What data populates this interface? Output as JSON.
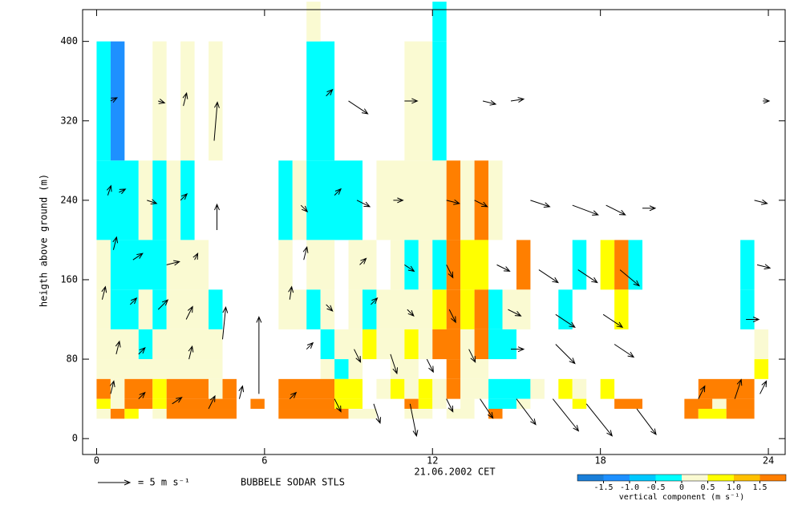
{
  "chart_data": {
    "type": "sodar",
    "caption": "BUBBELE SODAR STLS",
    "x_label": "21.06.2002 CET",
    "y_label": "heigth above ground (m)",
    "xlim": [
      -0.5,
      24.6
    ],
    "xticks": [
      0,
      6,
      12,
      18,
      24
    ],
    "ylim": [
      -16,
      432
    ],
    "yticks": [
      0,
      80,
      160,
      240,
      320,
      400
    ],
    "colorbar": {
      "label": "vertical component (m s⁻¹)",
      "bounds": [
        -2,
        -1.5,
        -1,
        -0.5,
        0,
        0.5,
        1,
        1.5,
        2
      ],
      "colors": [
        "#1a7fd9",
        "#1e90ff",
        "#00c8ff",
        "#00ffff",
        "#fafad2",
        "#ffff00",
        "#ffc000",
        "#ff7f00"
      ],
      "ticks": [
        {
          "value": -1.5,
          "label": "-1.5"
        },
        {
          "value": -1,
          "label": "-1.0"
        },
        {
          "value": -0.5,
          "label": "-0.5"
        },
        0,
        0.5,
        {
          "value": 1,
          "label": "1.0"
        },
        1.5
      ]
    },
    "reference": {
      "label": "= 5 m s⁻¹",
      "speed": 5
    },
    "arrow_color": "#000000",
    "cells": [
      [
        0,
        0.5,
        280,
        400,
        -0.3
      ],
      [
        0.5,
        1,
        280,
        400,
        -1.2
      ],
      [
        2,
        2.5,
        280,
        400,
        0.2
      ],
      [
        3,
        3.5,
        280,
        400,
        0.2
      ],
      [
        4,
        4.5,
        280,
        400,
        0.2
      ],
      [
        7.5,
        8.5,
        280,
        400,
        -0.3
      ],
      [
        11,
        12,
        280,
        400,
        0.2
      ],
      [
        12,
        12.5,
        280,
        400,
        -0.3
      ],
      [
        7.5,
        8,
        400,
        440,
        0.2
      ],
      [
        12,
        12.5,
        400,
        440,
        -0.3
      ],
      [
        0,
        1.5,
        200,
        280,
        -0.3
      ],
      [
        1.5,
        2,
        200,
        280,
        0.2
      ],
      [
        2,
        2.5,
        200,
        280,
        -0.3
      ],
      [
        2.5,
        3,
        200,
        280,
        0.2
      ],
      [
        3,
        3.5,
        200,
        280,
        -0.3
      ],
      [
        6.5,
        7,
        200,
        280,
        -0.3
      ],
      [
        7,
        7.5,
        200,
        280,
        0.2
      ],
      [
        7.5,
        9.5,
        200,
        280,
        -0.3
      ],
      [
        10,
        12.5,
        200,
        280,
        0.2
      ],
      [
        12.5,
        13,
        200,
        280,
        1.7
      ],
      [
        13,
        13.5,
        200,
        280,
        0.2
      ],
      [
        13.5,
        14,
        200,
        280,
        1.7
      ],
      [
        14,
        14.5,
        200,
        280,
        0.2
      ],
      [
        0,
        0.5,
        150,
        200,
        0.2
      ],
      [
        0.5,
        2.5,
        150,
        200,
        -0.3
      ],
      [
        2.5,
        4,
        150,
        200,
        0.2
      ],
      [
        6.5,
        7,
        150,
        200,
        0.2
      ],
      [
        7.5,
        8.5,
        150,
        200,
        0.2
      ],
      [
        9,
        10,
        150,
        200,
        0.2
      ],
      [
        10.5,
        11,
        150,
        200,
        0.2
      ],
      [
        11,
        11.5,
        150,
        200,
        -0.3
      ],
      [
        11.5,
        12,
        150,
        200,
        0.2
      ],
      [
        12,
        12.5,
        150,
        200,
        -0.3
      ],
      [
        12.5,
        13,
        150,
        200,
        1.7
      ],
      [
        13,
        14,
        150,
        200,
        0.8
      ],
      [
        15,
        15.5,
        150,
        200,
        1.7
      ],
      [
        17,
        17.5,
        150,
        200,
        -0.3
      ],
      [
        18,
        18.5,
        150,
        200,
        0.8
      ],
      [
        18.5,
        19,
        150,
        200,
        1.7
      ],
      [
        19,
        19.5,
        150,
        200,
        -0.3
      ],
      [
        23,
        23.5,
        150,
        200,
        -0.3
      ],
      [
        0,
        0.5,
        110,
        150,
        0.2
      ],
      [
        0.5,
        1.5,
        110,
        150,
        -0.3
      ],
      [
        1.5,
        2,
        110,
        150,
        0.2
      ],
      [
        2,
        2.5,
        110,
        150,
        -0.3
      ],
      [
        2.5,
        4,
        110,
        150,
        0.2
      ],
      [
        4,
        4.5,
        110,
        150,
        -0.3
      ],
      [
        6.5,
        7.5,
        110,
        150,
        0.2
      ],
      [
        7.5,
        8,
        110,
        150,
        -0.3
      ],
      [
        8,
        8.5,
        110,
        150,
        0.2
      ],
      [
        9,
        9.5,
        110,
        150,
        0.2
      ],
      [
        9.5,
        10,
        110,
        150,
        -0.3
      ],
      [
        10,
        12,
        110,
        150,
        0.2
      ],
      [
        12,
        12.5,
        110,
        150,
        0.8
      ],
      [
        12.5,
        13,
        110,
        150,
        1.7
      ],
      [
        13,
        13.5,
        110,
        150,
        0.8
      ],
      [
        13.5,
        14,
        110,
        150,
        1.7
      ],
      [
        14,
        14.5,
        110,
        150,
        -0.3
      ],
      [
        14.5,
        15.5,
        110,
        150,
        0.2
      ],
      [
        16.5,
        17,
        110,
        150,
        -0.3
      ],
      [
        18.5,
        19,
        110,
        150,
        0.8
      ],
      [
        23,
        23.5,
        110,
        150,
        -0.3
      ],
      [
        0,
        1.5,
        80,
        110,
        0.2
      ],
      [
        1.5,
        2,
        80,
        110,
        -0.3
      ],
      [
        2,
        4.5,
        80,
        110,
        0.2
      ],
      [
        8,
        8.5,
        80,
        110,
        -0.3
      ],
      [
        8.5,
        9.5,
        80,
        110,
        0.2
      ],
      [
        9.5,
        10,
        80,
        110,
        0.8
      ],
      [
        10,
        11,
        80,
        110,
        0.2
      ],
      [
        11,
        11.5,
        80,
        110,
        0.8
      ],
      [
        11.5,
        12,
        80,
        110,
        0.2
      ],
      [
        12,
        13,
        80,
        110,
        1.7
      ],
      [
        13,
        13.5,
        80,
        110,
        0.2
      ],
      [
        13.5,
        14,
        80,
        110,
        1.7
      ],
      [
        14,
        15,
        80,
        110,
        -0.3
      ],
      [
        23.5,
        24,
        80,
        110,
        0.2
      ],
      [
        0,
        4.5,
        60,
        80,
        0.2
      ],
      [
        8,
        8.5,
        60,
        80,
        0.2
      ],
      [
        8.5,
        9,
        60,
        80,
        -0.3
      ],
      [
        9,
        9.5,
        60,
        80,
        0.2
      ],
      [
        10.5,
        11.5,
        60,
        80,
        0.2
      ],
      [
        12.5,
        13,
        60,
        80,
        1.7
      ],
      [
        13,
        14,
        60,
        80,
        0.2
      ],
      [
        23.5,
        24,
        60,
        80,
        0.8
      ],
      [
        0,
        0.5,
        40,
        60,
        1.7
      ],
      [
        0.5,
        1,
        40,
        60,
        0.2
      ],
      [
        1,
        2,
        40,
        60,
        1.7
      ],
      [
        2,
        2.5,
        40,
        60,
        0.8
      ],
      [
        2.5,
        4,
        40,
        60,
        1.7
      ],
      [
        4,
        4.5,
        40,
        60,
        0.2
      ],
      [
        4.5,
        5,
        40,
        60,
        1.7
      ],
      [
        6.5,
        8.5,
        40,
        60,
        1.7
      ],
      [
        8.5,
        9.5,
        40,
        60,
        0.8
      ],
      [
        10,
        10.5,
        40,
        60,
        0.2
      ],
      [
        10.5,
        11,
        40,
        60,
        0.8
      ],
      [
        11,
        11.5,
        40,
        60,
        0.2
      ],
      [
        11.5,
        12,
        40,
        60,
        0.8
      ],
      [
        12,
        12.5,
        40,
        60,
        0.2
      ],
      [
        12.5,
        13,
        40,
        60,
        1.7
      ],
      [
        13,
        14,
        40,
        60,
        0.2
      ],
      [
        14,
        15.5,
        40,
        60,
        -0.3
      ],
      [
        15.5,
        16,
        40,
        60,
        0.2
      ],
      [
        16.5,
        17,
        40,
        60,
        0.8
      ],
      [
        17,
        17.5,
        40,
        60,
        0.2
      ],
      [
        18,
        18.5,
        40,
        60,
        0.8
      ],
      [
        21.5,
        23.5,
        40,
        60,
        1.7
      ],
      [
        0,
        0.5,
        30,
        40,
        0.8
      ],
      [
        0.5,
        1,
        30,
        40,
        0.2
      ],
      [
        1,
        2,
        30,
        40,
        1.7
      ],
      [
        2,
        2.5,
        30,
        40,
        0.8
      ],
      [
        2.5,
        5,
        30,
        40,
        1.7
      ],
      [
        5.5,
        6,
        30,
        40,
        1.7
      ],
      [
        6.5,
        8.5,
        30,
        40,
        1.7
      ],
      [
        8.5,
        9.5,
        30,
        40,
        0.8
      ],
      [
        11,
        11.5,
        30,
        40,
        1.7
      ],
      [
        11.5,
        12,
        30,
        40,
        0.8
      ],
      [
        12,
        12.5,
        30,
        40,
        0.2
      ],
      [
        13,
        13.5,
        30,
        40,
        0.2
      ],
      [
        14,
        15,
        30,
        40,
        -0.3
      ],
      [
        15,
        15.5,
        30,
        40,
        0.2
      ],
      [
        17,
        17.5,
        30,
        40,
        0.8
      ],
      [
        18.5,
        19.5,
        30,
        40,
        1.7
      ],
      [
        21,
        22,
        30,
        40,
        1.7
      ],
      [
        22,
        22.5,
        30,
        40,
        0.2
      ],
      [
        22.5,
        23.5,
        30,
        40,
        1.7
      ],
      [
        0,
        0.5,
        20,
        30,
        0.2
      ],
      [
        0.5,
        1,
        20,
        30,
        1.7
      ],
      [
        1,
        1.5,
        20,
        30,
        0.8
      ],
      [
        2,
        2.5,
        20,
        30,
        0.2
      ],
      [
        2.5,
        5,
        20,
        30,
        1.7
      ],
      [
        6.5,
        9,
        20,
        30,
        1.7
      ],
      [
        9,
        10,
        20,
        30,
        0.2
      ],
      [
        11,
        12,
        20,
        30,
        0.2
      ],
      [
        12.5,
        13.5,
        20,
        30,
        0.2
      ],
      [
        14,
        14.5,
        20,
        30,
        1.7
      ],
      [
        21,
        21.5,
        20,
        30,
        1.7
      ],
      [
        21.5,
        22.5,
        20,
        30,
        0.8
      ],
      [
        22.5,
        23.5,
        20,
        30,
        1.7
      ]
    ],
    "arrows": [
      [
        0.5,
        340,
        1,
        0.5
      ],
      [
        2.2,
        340,
        1,
        -0.3
      ],
      [
        3.1,
        335,
        0.5,
        2
      ],
      [
        4.2,
        300,
        0.5,
        6
      ],
      [
        0.4,
        245,
        0.5,
        1.5
      ],
      [
        0.8,
        248,
        1,
        0.5
      ],
      [
        1.8,
        240,
        1.5,
        -0.5
      ],
      [
        3.0,
        240,
        1,
        1
      ],
      [
        4.3,
        210,
        0,
        4
      ],
      [
        0.6,
        190,
        0.5,
        2
      ],
      [
        1.3,
        180,
        1.5,
        1
      ],
      [
        2.5,
        175,
        2,
        0.5
      ],
      [
        3.5,
        180,
        0.5,
        1
      ],
      [
        0.2,
        140,
        0.5,
        2
      ],
      [
        1.2,
        135,
        1,
        1
      ],
      [
        2.2,
        130,
        1.5,
        1.5
      ],
      [
        3.2,
        120,
        1,
        2
      ],
      [
        4.5,
        100,
        0.5,
        5
      ],
      [
        0.7,
        85,
        0.5,
        2
      ],
      [
        1.5,
        85,
        1,
        1
      ],
      [
        3.3,
        80,
        0.5,
        2
      ],
      [
        0.5,
        45,
        0.5,
        2
      ],
      [
        1.5,
        40,
        1,
        1
      ],
      [
        2.7,
        35,
        1.5,
        1
      ],
      [
        4,
        30,
        1,
        2
      ],
      [
        5.1,
        40,
        0.5,
        2
      ],
      [
        5.8,
        45,
        0,
        12
      ],
      [
        8.2,
        345,
        1,
        1
      ],
      [
        9,
        340,
        3,
        -2
      ],
      [
        11,
        340,
        2,
        0
      ],
      [
        13.8,
        340,
        2,
        -0.5
      ],
      [
        14.8,
        340,
        2,
        0.3
      ],
      [
        23.8,
        340,
        1,
        0
      ],
      [
        7.3,
        235,
        1,
        -1
      ],
      [
        8.5,
        245,
        1,
        1
      ],
      [
        9.3,
        240,
        2,
        -1
      ],
      [
        10.6,
        240,
        1.5,
        0
      ],
      [
        12.5,
        240,
        2,
        -0.5
      ],
      [
        13.5,
        240,
        2,
        -1
      ],
      [
        15.5,
        240,
        3,
        -1
      ],
      [
        17,
        235,
        4,
        -1.5
      ],
      [
        18.2,
        235,
        3,
        -1.5
      ],
      [
        19.5,
        232,
        2,
        0
      ],
      [
        23.5,
        240,
        2,
        -0.5
      ],
      [
        7.4,
        180,
        0.5,
        2
      ],
      [
        9.4,
        175,
        1,
        1
      ],
      [
        11,
        175,
        1.5,
        -1
      ],
      [
        12.5,
        175,
        1,
        -2
      ],
      [
        14.3,
        175,
        2,
        -1
      ],
      [
        15.8,
        170,
        3,
        -2
      ],
      [
        17.2,
        170,
        3,
        -2
      ],
      [
        18.7,
        170,
        3,
        -2.5
      ],
      [
        23.6,
        175,
        2,
        -0.5
      ],
      [
        6.9,
        140,
        0.3,
        2
      ],
      [
        8.2,
        135,
        1,
        -1
      ],
      [
        9.8,
        135,
        1,
        1
      ],
      [
        11.1,
        130,
        1,
        -1
      ],
      [
        12.6,
        130,
        1,
        -2
      ],
      [
        14.7,
        130,
        2,
        -1
      ],
      [
        16.4,
        125,
        3,
        -2
      ],
      [
        18.1,
        125,
        3,
        -2
      ],
      [
        23.2,
        120,
        2,
        0
      ],
      [
        7.5,
        90,
        1,
        1
      ],
      [
        9.2,
        90,
        1,
        -2
      ],
      [
        10.5,
        85,
        1,
        -3
      ],
      [
        11.8,
        80,
        1,
        -2
      ],
      [
        13.3,
        90,
        1,
        -2
      ],
      [
        14.8,
        90,
        2,
        0
      ],
      [
        16.4,
        95,
        3,
        -3
      ],
      [
        18.5,
        95,
        3,
        -2
      ],
      [
        6.9,
        40,
        1,
        1
      ],
      [
        8.5,
        40,
        1,
        -2
      ],
      [
        9.9,
        35,
        1,
        -3
      ],
      [
        11.2,
        35,
        1,
        -5
      ],
      [
        12.5,
        40,
        1,
        -2
      ],
      [
        13.7,
        40,
        2,
        -3
      ],
      [
        15,
        40,
        3,
        -4
      ],
      [
        16.3,
        40,
        4,
        -5
      ],
      [
        17.5,
        35,
        4,
        -5
      ],
      [
        19.3,
        30,
        3,
        -4
      ],
      [
        21.5,
        40,
        1,
        2
      ],
      [
        22.8,
        40,
        1,
        3
      ],
      [
        23.7,
        45,
        1,
        2
      ]
    ]
  }
}
